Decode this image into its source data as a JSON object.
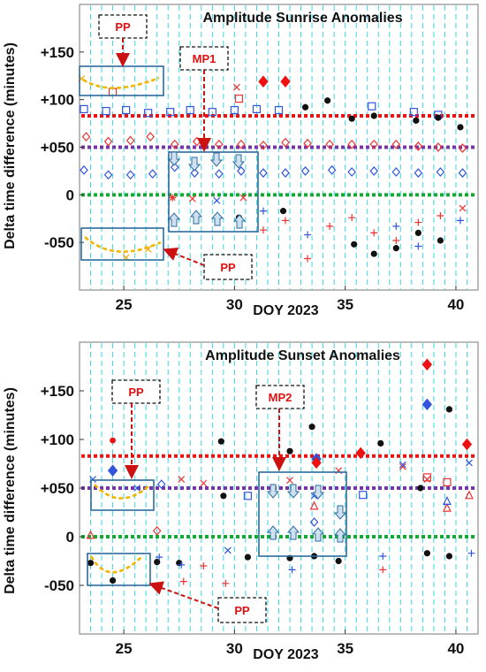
{
  "figure": {
    "ylabel": "Delta time difference (minutes)"
  },
  "chart_data": [
    {
      "type": "scatter",
      "title": "Amplitude Sunrise Anomalies",
      "xlabel": "DOY 2023",
      "ylabel": "Delta time difference (minutes)",
      "xlim": [
        23,
        41
      ],
      "ylim": [
        -100,
        200
      ],
      "xticks": [
        25,
        30,
        35,
        40
      ],
      "yticks": [
        {
          "v": 150,
          "label": "+150"
        },
        {
          "v": 100,
          "label": "+100"
        },
        {
          "v": 50,
          "label": "+050"
        },
        {
          "v": 0,
          "label": "0"
        },
        {
          "v": -50,
          "label": "-050"
        }
      ],
      "grid": "vertical dashed cyan lines at half-day intervals",
      "reference_lines": [
        {
          "y": 83,
          "color": "#ee1111"
        },
        {
          "y": 50,
          "color": "#7733aa"
        },
        {
          "y": 0,
          "color": "#11aa33"
        }
      ],
      "series": [
        {
          "marker": "square",
          "color": "#3355dd",
          "points": [
            [
              23.2,
              90
            ],
            [
              24.2,
              88
            ],
            [
              25.1,
              89
            ],
            [
              26.1,
              86
            ],
            [
              27.1,
              87
            ],
            [
              28.0,
              89
            ],
            [
              29.0,
              87
            ],
            [
              30.0,
              89
            ],
            [
              31.0,
              90
            ],
            [
              32.0,
              89
            ],
            [
              36.2,
              93
            ],
            [
              38.1,
              87
            ],
            [
              39.2,
              84
            ]
          ]
        },
        {
          "marker": "square",
          "color": "#ee3333",
          "points": [
            [
              24.5,
              108
            ],
            [
              30.2,
              101
            ]
          ]
        },
        {
          "marker": "diamond",
          "color": "#ee3333",
          "points": [
            [
              23.3,
              61
            ],
            [
              24.3,
              56
            ],
            [
              25.3,
              57
            ],
            [
              26.2,
              61
            ],
            [
              27.3,
              53
            ],
            [
              28.3,
              56
            ],
            [
              29.3,
              53
            ],
            [
              30.3,
              53
            ],
            [
              31.3,
              52
            ],
            [
              32.3,
              55
            ],
            [
              33.3,
              54
            ],
            [
              34.3,
              53
            ],
            [
              35.3,
              53
            ],
            [
              36.3,
              53
            ],
            [
              37.3,
              53
            ],
            [
              38.3,
              51
            ],
            [
              39.2,
              50
            ],
            [
              40.3,
              49
            ]
          ]
        },
        {
          "marker": "diamond",
          "color": "#3355dd",
          "points": [
            [
              23.2,
              26
            ],
            [
              24.3,
              21
            ],
            [
              25.3,
              21
            ],
            [
              26.3,
              22
            ],
            [
              27.3,
              29
            ],
            [
              28.2,
              23
            ],
            [
              29.3,
              22
            ],
            [
              30.3,
              25
            ],
            [
              31.3,
              23
            ],
            [
              32.3,
              23
            ],
            [
              33.2,
              25
            ],
            [
              34.4,
              26
            ],
            [
              35.3,
              24
            ],
            [
              36.3,
              25
            ],
            [
              37.3,
              24
            ],
            [
              38.3,
              23
            ],
            [
              39.3,
              24
            ],
            [
              40.3,
              23
            ]
          ]
        },
        {
          "marker": "circle",
          "color": "#111111",
          "points": [
            [
              30.2,
              -24
            ],
            [
              32.2,
              -17
            ],
            [
              33.2,
              92
            ],
            [
              34.2,
              99
            ],
            [
              35.3,
              80
            ],
            [
              35.4,
              -52
            ],
            [
              36.3,
              83
            ],
            [
              36.3,
              -62
            ],
            [
              37.3,
              -56
            ],
            [
              38.2,
              78
            ],
            [
              38.3,
              -40
            ],
            [
              39.2,
              81
            ],
            [
              39.3,
              -48
            ],
            [
              40.2,
              71
            ]
          ]
        },
        {
          "marker": "filled-diamond",
          "color": "#ee1111",
          "points": [
            [
              31.3,
              119
            ],
            [
              32.3,
              119
            ]
          ]
        },
        {
          "marker": "x",
          "color": "#ee3333",
          "points": [
            [
              30.1,
              113
            ],
            [
              28.1,
              -4
            ],
            [
              30.4,
              -3
            ],
            [
              40.3,
              -14
            ]
          ]
        },
        {
          "marker": "x",
          "color": "#3355dd",
          "points": [
            [
              29.2,
              -6
            ]
          ]
        },
        {
          "marker": "asterisk",
          "color": "#ee3333",
          "points": [
            [
              27.2,
              -3
            ]
          ]
        },
        {
          "marker": "plus",
          "color": "#ee3333",
          "points": [
            [
              31.3,
              -37
            ],
            [
              32.3,
              -27
            ],
            [
              33.3,
              -67
            ],
            [
              34.3,
              -33
            ],
            [
              35.3,
              -24
            ],
            [
              36.3,
              -40
            ],
            [
              37.3,
              -48
            ],
            [
              38.3,
              -29
            ],
            [
              39.3,
              -22
            ]
          ]
        },
        {
          "marker": "plus",
          "color": "#3355dd",
          "points": [
            [
              31.3,
              -17
            ],
            [
              33.3,
              -42
            ],
            [
              37.3,
              -33
            ],
            [
              38.3,
              -54
            ],
            [
              40.2,
              -27
            ]
          ]
        },
        {
          "marker": "x",
          "color": "#f2a900",
          "points": [
            [
              23.1,
              122
            ],
            [
              25.1,
              -66
            ],
            [
              26.1,
              -57
            ]
          ]
        }
      ],
      "annotations": [
        {
          "box_label": "PP",
          "target": "inset-top-left"
        },
        {
          "box_label": "MP1",
          "target": "middle-inset"
        },
        {
          "box_label": "PP",
          "target": "inset-bottom-left"
        }
      ]
    },
    {
      "type": "scatter",
      "title": "Amplitude Sunset Anomalies",
      "xlabel": "DOY 2023",
      "ylabel": "Delta time difference (minutes)",
      "xlim": [
        23,
        41
      ],
      "ylim": [
        -100,
        200
      ],
      "xticks": [
        25,
        30,
        35,
        40
      ],
      "yticks": [
        {
          "v": 150,
          "label": "+150"
        },
        {
          "v": 100,
          "label": "+100"
        },
        {
          "v": 50,
          "label": "+050"
        },
        {
          "v": 0,
          "label": "0"
        },
        {
          "v": -50,
          "label": "-050"
        }
      ],
      "grid": "vertical dashed cyan lines at half-day intervals",
      "reference_lines": [
        {
          "y": 83,
          "color": "#ee1111"
        },
        {
          "y": 50,
          "color": "#7733aa"
        },
        {
          "y": 0,
          "color": "#11aa33"
        }
      ],
      "series": [
        {
          "marker": "circle-filled",
          "color": "#ee1111",
          "points": [
            [
              24.5,
              99
            ]
          ]
        },
        {
          "marker": "filled-diamond",
          "color": "#3355dd",
          "points": [
            [
              24.5,
              68
            ],
            [
              38.7,
              136
            ]
          ]
        },
        {
          "marker": "filled-diamond",
          "color": "#ee1111",
          "points": [
            [
              38.7,
              177
            ],
            [
              35.7,
              86
            ],
            [
              40.5,
              95
            ]
          ]
        },
        {
          "marker": "circle",
          "color": "#111111",
          "points": [
            [
              23.5,
              -27
            ],
            [
              24.5,
              -45
            ],
            [
              26.5,
              -26
            ],
            [
              27.5,
              -27
            ],
            [
              29.4,
              98
            ],
            [
              29.5,
              42
            ],
            [
              30.6,
              -21
            ],
            [
              32.5,
              88
            ],
            [
              32.5,
              -22
            ],
            [
              33.5,
              113
            ],
            [
              33.6,
              -20
            ],
            [
              34.7,
              -25
            ],
            [
              36.6,
              96
            ],
            [
              38.4,
              50
            ],
            [
              38.7,
              -17
            ],
            [
              39.7,
              131
            ],
            [
              39.7,
              -20
            ]
          ]
        },
        {
          "marker": "triangle",
          "color": "#ee3333",
          "points": [
            [
              23.5,
              1
            ],
            [
              33.6,
              31
            ],
            [
              39.6,
              29
            ],
            [
              40.6,
              42
            ]
          ]
        },
        {
          "marker": "triangle",
          "color": "#3355dd",
          "points": [
            [
              39.6,
              36
            ]
          ]
        },
        {
          "marker": "x",
          "color": "#ee3333",
          "points": [
            [
              27.6,
              59
            ],
            [
              28.6,
              55
            ],
            [
              32.5,
              58
            ],
            [
              34.7,
              68
            ],
            [
              37.6,
              72
            ],
            [
              38.7,
              59
            ]
          ]
        },
        {
          "marker": "x",
          "color": "#3355dd",
          "points": [
            [
              23.6,
              59
            ],
            [
              25.6,
              50
            ],
            [
              29.7,
              -14
            ],
            [
              33.6,
              42
            ],
            [
              37.6,
              74
            ],
            [
              40.6,
              76
            ]
          ]
        },
        {
          "marker": "plus",
          "color": "#ee3333",
          "points": [
            [
              27.7,
              -46
            ],
            [
              28.6,
              -30
            ],
            [
              29.6,
              -48
            ],
            [
              36.7,
              -34
            ]
          ]
        },
        {
          "marker": "plus",
          "color": "#3355dd",
          "points": [
            [
              26.6,
              -21
            ],
            [
              27.6,
              -29
            ],
            [
              32.6,
              -34
            ],
            [
              36.7,
              -20
            ],
            [
              40.7,
              -17
            ]
          ]
        },
        {
          "marker": "diamond",
          "color": "#ee3333",
          "points": [
            [
              26.5,
              6
            ]
          ]
        },
        {
          "marker": "diamond",
          "color": "#3355dd",
          "points": [
            [
              26.7,
              54
            ],
            [
              33.6,
              15
            ]
          ]
        },
        {
          "marker": "square",
          "color": "#3355dd",
          "points": [
            [
              30.6,
              42
            ],
            [
              35.8,
              43
            ]
          ]
        },
        {
          "marker": "square",
          "color": "#ee3333",
          "points": [
            [
              38.7,
              61
            ],
            [
              39.6,
              56
            ]
          ]
        },
        {
          "marker": "filled-diamond",
          "color": "#3355dd",
          "points": [
            [
              33.7,
              80
            ]
          ]
        },
        {
          "marker": "filled-diamond",
          "color": "#ee1111",
          "points": [
            [
              33.7,
              76
            ]
          ]
        }
      ],
      "annotations": [
        {
          "box_label": "PP",
          "target": "inset-left-top"
        },
        {
          "box_label": "MP2",
          "target": "middle-inset"
        },
        {
          "box_label": "PP",
          "target": "inset-left-bottom"
        }
      ]
    }
  ]
}
